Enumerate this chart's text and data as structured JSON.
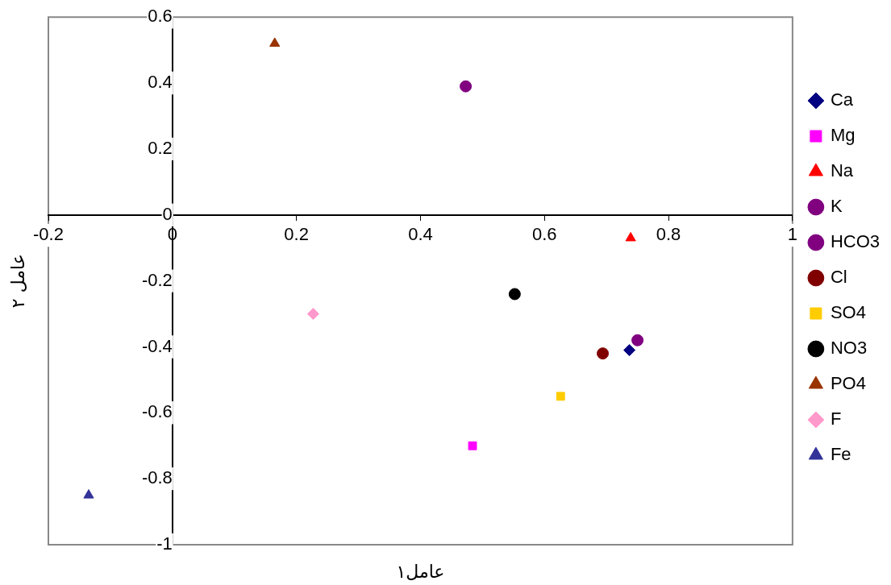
{
  "chart_data": {
    "type": "scatter",
    "xlabel": "عامل۱",
    "ylabel": "عامل ۲",
    "xlim": [
      -0.2,
      1
    ],
    "xticks": [
      -0.2,
      0,
      0.2,
      0.4,
      0.6,
      0.8,
      1
    ],
    "ylim": [
      -1,
      0.6
    ],
    "yticks": [
      -1,
      -0.8,
      -0.6,
      -0.4,
      -0.2,
      0,
      0.2,
      0.4,
      0.6
    ],
    "grid": false,
    "legend": "right",
    "series": [
      {
        "name": "Ca",
        "color": "#000080",
        "marker": "diamond",
        "x": [
          0.737
        ],
        "values": [
          -0.41
        ]
      },
      {
        "name": "Mg",
        "color": "#ff00ff",
        "marker": "square",
        "x": [
          0.484
        ],
        "values": [
          -0.7
        ]
      },
      {
        "name": "Na",
        "color": "#ff0000",
        "marker": "triangle",
        "x": [
          0.739
        ],
        "values": [
          -0.07
        ]
      },
      {
        "name": "K",
        "color": "#800080",
        "marker": "circle",
        "x": [
          0.75
        ],
        "values": [
          -0.38
        ]
      },
      {
        "name": "HCO3",
        "color": "#800080",
        "marker": "circle",
        "x": [
          0.473
        ],
        "values": [
          0.39
        ]
      },
      {
        "name": "Cl",
        "color": "#800000",
        "marker": "circle",
        "x": [
          0.694
        ],
        "values": [
          -0.42
        ]
      },
      {
        "name": "SO4",
        "color": "#ffcc00",
        "marker": "square",
        "x": [
          0.626
        ],
        "values": [
          -0.55
        ]
      },
      {
        "name": "NO3",
        "color": "#000000",
        "marker": "circle",
        "x": [
          0.552
        ],
        "values": [
          -0.24
        ]
      },
      {
        "name": "PO4",
        "color": "#993300",
        "marker": "triangle",
        "x": [
          0.165
        ],
        "values": [
          0.52
        ]
      },
      {
        "name": "F",
        "color": "#ff99cc",
        "marker": "diamond",
        "x": [
          0.227
        ],
        "values": [
          -0.3
        ]
      },
      {
        "name": "Fe",
        "color": "#333399",
        "marker": "triangle",
        "x": [
          -0.135
        ],
        "values": [
          -0.85
        ]
      }
    ]
  }
}
